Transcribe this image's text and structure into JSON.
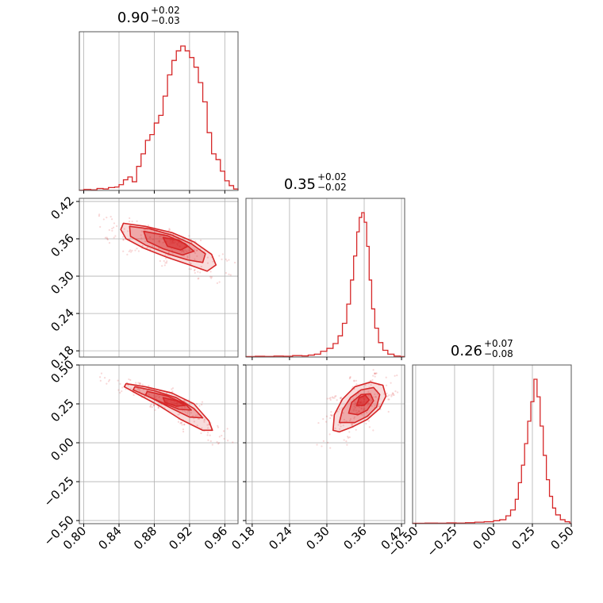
{
  "chart_data": {
    "type": "corner",
    "color": "#d62728",
    "parameters": [
      {
        "title": {
          "median": "0.90",
          "upper": "+0.02",
          "lower": "−0.03"
        },
        "range": [
          0.795,
          0.975
        ],
        "ticks": [
          {
            "v": 0.8,
            "label": "0.80"
          },
          {
            "v": 0.84,
            "label": "0.84"
          },
          {
            "v": 0.88,
            "label": "0.88"
          },
          {
            "v": 0.92,
            "label": "0.92"
          },
          {
            "v": 0.96,
            "label": "0.96"
          }
        ],
        "hist": [
          [
            0.795,
            0.2
          ],
          [
            0.8,
            1.0
          ],
          [
            0.808,
            0.6
          ],
          [
            0.815,
            2.0
          ],
          [
            0.822,
            1.5
          ],
          [
            0.828,
            3.0
          ],
          [
            0.835,
            3.5
          ],
          [
            0.84,
            6.0
          ],
          [
            0.845,
            11
          ],
          [
            0.85,
            14
          ],
          [
            0.855,
            9
          ],
          [
            0.86,
            25
          ],
          [
            0.865,
            38
          ],
          [
            0.87,
            52
          ],
          [
            0.875,
            58
          ],
          [
            0.88,
            70
          ],
          [
            0.885,
            78
          ],
          [
            0.89,
            98
          ],
          [
            0.895,
            120
          ],
          [
            0.9,
            135
          ],
          [
            0.905,
            145
          ],
          [
            0.91,
            150
          ],
          [
            0.915,
            145
          ],
          [
            0.92,
            138
          ],
          [
            0.925,
            128
          ],
          [
            0.93,
            112
          ],
          [
            0.935,
            92
          ],
          [
            0.94,
            60
          ],
          [
            0.945,
            38
          ],
          [
            0.95,
            32
          ],
          [
            0.955,
            20
          ],
          [
            0.96,
            10
          ],
          [
            0.965,
            5
          ],
          [
            0.97,
            1.5
          ]
        ]
      },
      {
        "title": {
          "median": "0.35",
          "upper": "+0.02",
          "lower": "−0.02"
        },
        "range": [
          0.17,
          0.425
        ],
        "ticks": [
          {
            "v": 0.18,
            "label": "0.18"
          },
          {
            "v": 0.24,
            "label": "0.24"
          },
          {
            "v": 0.3,
            "label": "0.30"
          },
          {
            "v": 0.36,
            "label": "0.36"
          },
          {
            "v": 0.42,
            "label": "0.42"
          }
        ],
        "hist": [
          [
            0.17,
            0.5
          ],
          [
            0.185,
            0.8
          ],
          [
            0.2,
            0.6
          ],
          [
            0.215,
            1.0
          ],
          [
            0.23,
            0.8
          ],
          [
            0.245,
            1.5
          ],
          [
            0.26,
            1.2
          ],
          [
            0.27,
            2.0
          ],
          [
            0.28,
            3.0
          ],
          [
            0.29,
            6.0
          ],
          [
            0.3,
            9.0
          ],
          [
            0.31,
            14
          ],
          [
            0.318,
            22
          ],
          [
            0.325,
            35
          ],
          [
            0.332,
            55
          ],
          [
            0.338,
            80
          ],
          [
            0.343,
            105
          ],
          [
            0.348,
            130
          ],
          [
            0.352,
            145
          ],
          [
            0.356,
            150
          ],
          [
            0.36,
            140
          ],
          [
            0.364,
            115
          ],
          [
            0.368,
            80
          ],
          [
            0.372,
            50
          ],
          [
            0.377,
            30
          ],
          [
            0.383,
            15
          ],
          [
            0.39,
            7
          ],
          [
            0.398,
            3
          ],
          [
            0.408,
            1.0
          ],
          [
            0.418,
            0.5
          ]
        ]
      },
      {
        "title": {
          "median": "0.26",
          "upper": "+0.07",
          "lower": "−0.08"
        },
        "range": [
          -0.52,
          0.5
        ],
        "ticks": [
          {
            "v": -0.5,
            "label": "−0.50"
          },
          {
            "v": -0.25,
            "label": "−0.25"
          },
          {
            "v": 0.0,
            "label": "0.00"
          },
          {
            "v": 0.25,
            "label": "0.25"
          },
          {
            "v": 0.5,
            "label": "0.50"
          }
        ],
        "hist": [
          [
            -0.52,
            0.4
          ],
          [
            -0.44,
            0.6
          ],
          [
            -0.36,
            0.5
          ],
          [
            -0.3,
            0.8
          ],
          [
            -0.24,
            0.6
          ],
          [
            -0.18,
            1.0
          ],
          [
            -0.12,
            1.5
          ],
          [
            -0.06,
            2.0
          ],
          [
            0.0,
            3.0
          ],
          [
            0.04,
            4.0
          ],
          [
            0.08,
            8.0
          ],
          [
            0.11,
            14
          ],
          [
            0.14,
            25
          ],
          [
            0.16,
            42
          ],
          [
            0.18,
            60
          ],
          [
            0.2,
            82
          ],
          [
            0.22,
            105
          ],
          [
            0.24,
            125
          ],
          [
            0.26,
            148
          ],
          [
            0.28,
            130
          ],
          [
            0.3,
            100
          ],
          [
            0.32,
            70
          ],
          [
            0.34,
            45
          ],
          [
            0.36,
            28
          ],
          [
            0.38,
            16
          ],
          [
            0.4,
            9
          ],
          [
            0.43,
            4
          ],
          [
            0.46,
            2
          ],
          [
            0.49,
            0.5
          ]
        ]
      }
    ],
    "pairs": [
      {
        "x_index": 0,
        "y_index": 1,
        "center": [
          0.905,
          0.355
        ],
        "levels": [
          {
            "points": [
              [
                0.845,
                0.385
              ],
              [
                0.87,
                0.38
              ],
              [
                0.9,
                0.37
              ],
              [
                0.925,
                0.355
              ],
              [
                0.945,
                0.335
              ],
              [
                0.95,
                0.318
              ],
              [
                0.94,
                0.308
              ],
              [
                0.92,
                0.318
              ],
              [
                0.895,
                0.33
              ],
              [
                0.868,
                0.345
              ],
              [
                0.848,
                0.36
              ],
              [
                0.842,
                0.375
              ]
            ]
          },
          {
            "points": [
              [
                0.852,
                0.38
              ],
              [
                0.875,
                0.376
              ],
              [
                0.9,
                0.366
              ],
              [
                0.922,
                0.352
              ],
              [
                0.938,
                0.336
              ],
              [
                0.935,
                0.322
              ],
              [
                0.918,
                0.326
              ],
              [
                0.895,
                0.336
              ],
              [
                0.87,
                0.35
              ],
              [
                0.853,
                0.364
              ]
            ]
          },
          {
            "points": [
              [
                0.868,
                0.372
              ],
              [
                0.895,
                0.365
              ],
              [
                0.915,
                0.352
              ],
              [
                0.925,
                0.34
              ],
              [
                0.912,
                0.334
              ],
              [
                0.89,
                0.344
              ],
              [
                0.872,
                0.356
              ]
            ]
          },
          {
            "points": [
              [
                0.89,
                0.362
              ],
              [
                0.908,
                0.358
              ],
              [
                0.918,
                0.348
              ],
              [
                0.91,
                0.342
              ],
              [
                0.895,
                0.348
              ]
            ]
          }
        ]
      },
      {
        "x_index": 0,
        "y_index": 2,
        "center": [
          0.905,
          0.26
        ],
        "levels": [
          {
            "points": [
              [
                0.848,
                0.38
              ],
              [
                0.87,
                0.36
              ],
              [
                0.9,
                0.32
              ],
              [
                0.925,
                0.25
              ],
              [
                0.942,
                0.14
              ],
              [
                0.946,
                0.08
              ],
              [
                0.935,
                0.08
              ],
              [
                0.91,
                0.15
              ],
              [
                0.885,
                0.24
              ],
              [
                0.862,
                0.31
              ],
              [
                0.846,
                0.36
              ]
            ]
          },
          {
            "points": [
              [
                0.858,
                0.36
              ],
              [
                0.88,
                0.335
              ],
              [
                0.905,
                0.29
              ],
              [
                0.925,
                0.22
              ],
              [
                0.935,
                0.16
              ],
              [
                0.92,
                0.165
              ],
              [
                0.9,
                0.22
              ],
              [
                0.876,
                0.29
              ],
              [
                0.856,
                0.34
              ]
            ]
          },
          {
            "points": [
              [
                0.872,
                0.33
              ],
              [
                0.895,
                0.3
              ],
              [
                0.915,
                0.25
              ],
              [
                0.922,
                0.21
              ],
              [
                0.908,
                0.215
              ],
              [
                0.89,
                0.255
              ],
              [
                0.87,
                0.305
              ]
            ]
          },
          {
            "points": [
              [
                0.89,
                0.29
              ],
              [
                0.905,
                0.27
              ],
              [
                0.915,
                0.24
              ],
              [
                0.905,
                0.235
              ],
              [
                0.892,
                0.26
              ]
            ]
          }
        ]
      },
      {
        "x_index": 1,
        "y_index": 2,
        "center": [
          0.355,
          0.26
        ],
        "levels": [
          {
            "points": [
              [
                0.31,
                0.08
              ],
              [
                0.312,
                0.18
              ],
              [
                0.325,
                0.28
              ],
              [
                0.345,
                0.36
              ],
              [
                0.37,
                0.39
              ],
              [
                0.39,
                0.37
              ],
              [
                0.395,
                0.3
              ],
              [
                0.385,
                0.22
              ],
              [
                0.365,
                0.15
              ],
              [
                0.34,
                0.1
              ],
              [
                0.32,
                0.07
              ]
            ]
          },
          {
            "points": [
              [
                0.32,
                0.13
              ],
              [
                0.325,
                0.21
              ],
              [
                0.338,
                0.29
              ],
              [
                0.355,
                0.34
              ],
              [
                0.375,
                0.355
              ],
              [
                0.385,
                0.31
              ],
              [
                0.38,
                0.23
              ],
              [
                0.365,
                0.17
              ],
              [
                0.345,
                0.13
              ]
            ]
          },
          {
            "points": [
              [
                0.335,
                0.19
              ],
              [
                0.34,
                0.26
              ],
              [
                0.355,
                0.31
              ],
              [
                0.37,
                0.315
              ],
              [
                0.375,
                0.27
              ],
              [
                0.365,
                0.21
              ],
              [
                0.35,
                0.18
              ]
            ]
          },
          {
            "points": [
              [
                0.348,
                0.24
              ],
              [
                0.352,
                0.29
              ],
              [
                0.362,
                0.305
              ],
              [
                0.368,
                0.275
              ],
              [
                0.36,
                0.24
              ]
            ]
          }
        ]
      }
    ]
  }
}
